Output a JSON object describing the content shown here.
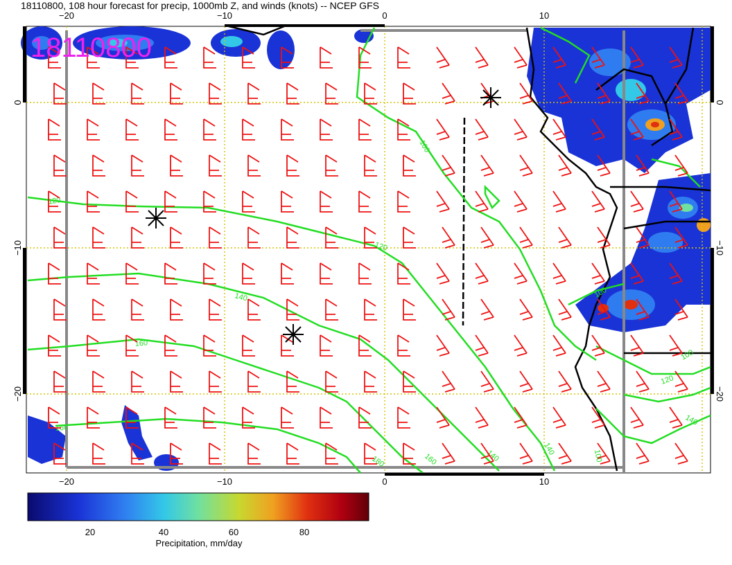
{
  "title": "18110800, 108 hour forecast for precip, 1000mb Z, and winds (knots) -- NCEP GFS",
  "stamp": "18110800",
  "axes": {
    "top_ticks": [
      "−20",
      "−10",
      "0",
      "10"
    ],
    "bottom_ticks": [
      "−20",
      "−10",
      "0",
      "10"
    ],
    "left_ticks": [
      "0",
      "−10",
      "−20"
    ],
    "right_ticks": [
      "0",
      "−10",
      "−20"
    ]
  },
  "contour_labels": [
    "100",
    "120",
    "120",
    "140",
    "160",
    "160",
    "180",
    "160",
    "140",
    "140",
    "100",
    "100",
    "120",
    "140",
    "100"
  ],
  "colorbar": {
    "label": "Precipitation, mm/day",
    "ticks": [
      "20",
      "40",
      "60",
      "80"
    ],
    "colors": [
      "#0a0a6e",
      "#1a33d6",
      "#2f7cf0",
      "#33c8e8",
      "#6fe0a0",
      "#c8d830",
      "#f0a020",
      "#e03010",
      "#b00010",
      "#600008"
    ]
  },
  "colors": {
    "contour": "#22dd22",
    "wind": "#ee1111",
    "grid": "#d4c200",
    "frame": "#000000"
  }
}
